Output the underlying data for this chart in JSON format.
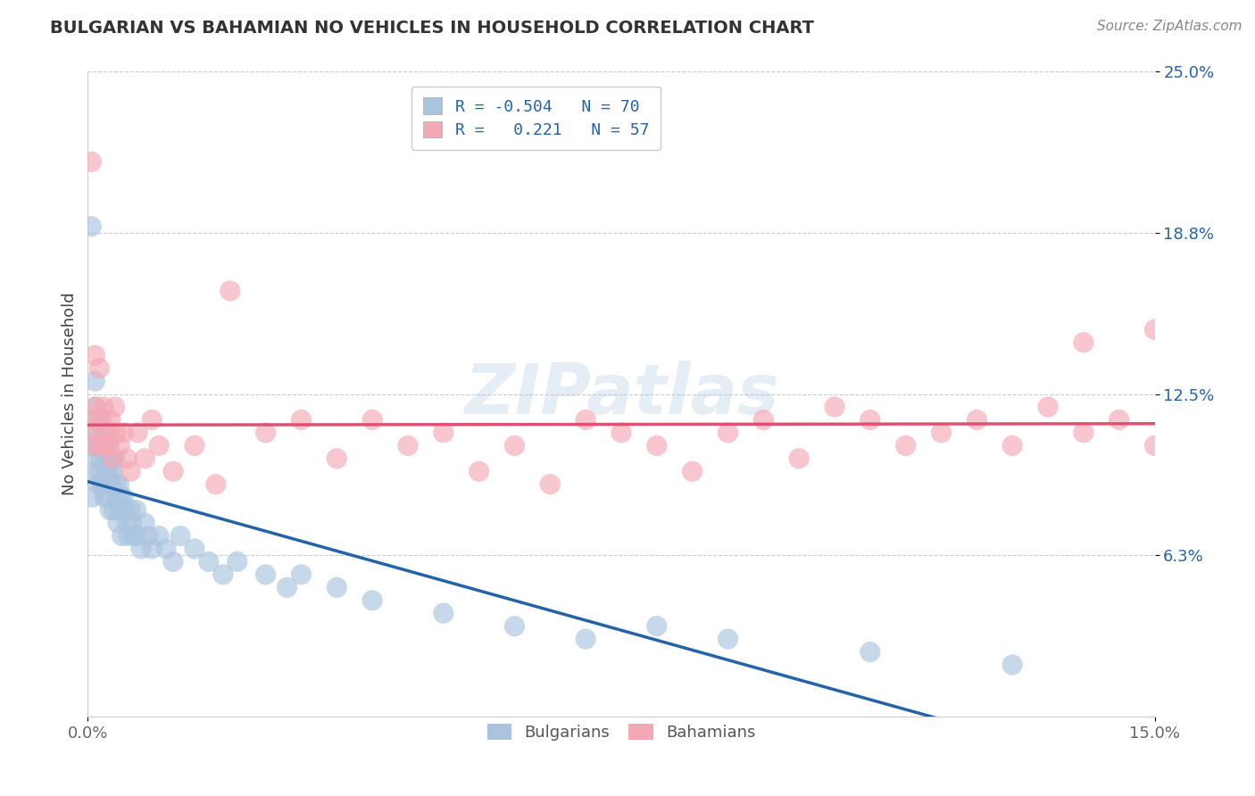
{
  "title": "BULGARIAN VS BAHAMIAN NO VEHICLES IN HOUSEHOLD CORRELATION CHART",
  "source_text": "Source: ZipAtlas.com",
  "ylabel": "No Vehicles in Household",
  "xlim": [
    0.0,
    15.0
  ],
  "ylim": [
    0.0,
    25.0
  ],
  "xtick_labels": [
    "0.0%",
    "15.0%"
  ],
  "ytick_labels": [
    "6.3%",
    "12.5%",
    "18.8%",
    "25.0%"
  ],
  "ytick_values": [
    6.25,
    12.5,
    18.75,
    25.0
  ],
  "grid_color": "#cccccc",
  "bg_color": "#ffffff",
  "watermark": "ZIPatlas",
  "watermark_color": "#aac4e0",
  "bulgarian_color": "#aac4df",
  "bahamian_color": "#f4a8b5",
  "bulgarian_line_color": "#2563a8",
  "bahamian_line_color": "#e05070",
  "legend_r_bulgarian": "-0.504",
  "legend_n_bulgarian": "70",
  "legend_r_bahamian": "0.221",
  "legend_n_bahamian": "57",
  "bulgarian_x": [
    0.05,
    0.06,
    0.07,
    0.08,
    0.09,
    0.1,
    0.1,
    0.12,
    0.13,
    0.14,
    0.15,
    0.16,
    0.17,
    0.18,
    0.19,
    0.2,
    0.21,
    0.22,
    0.23,
    0.25,
    0.26,
    0.27,
    0.28,
    0.3,
    0.31,
    0.32,
    0.33,
    0.35,
    0.36,
    0.38,
    0.4,
    0.41,
    0.42,
    0.44,
    0.45,
    0.47,
    0.48,
    0.5,
    0.52,
    0.55,
    0.57,
    0.6,
    0.62,
    0.65,
    0.68,
    0.7,
    0.75,
    0.8,
    0.85,
    0.9,
    1.0,
    1.1,
    1.2,
    1.3,
    1.5,
    1.7,
    1.9,
    2.1,
    2.5,
    2.8,
    3.0,
    3.5,
    4.0,
    5.0,
    6.0,
    7.0,
    8.0,
    9.0,
    11.0,
    13.0
  ],
  "bulgarian_y": [
    19.0,
    10.5,
    8.5,
    11.0,
    9.5,
    12.0,
    13.0,
    11.5,
    10.0,
    9.0,
    10.5,
    9.5,
    11.5,
    10.0,
    9.0,
    10.5,
    9.0,
    11.0,
    8.5,
    10.0,
    9.5,
    8.5,
    10.5,
    9.5,
    8.0,
    10.0,
    9.0,
    9.5,
    8.0,
    10.0,
    9.0,
    8.5,
    7.5,
    9.0,
    8.0,
    8.5,
    7.0,
    8.5,
    8.0,
    7.5,
    7.0,
    8.0,
    7.5,
    7.0,
    8.0,
    7.0,
    6.5,
    7.5,
    7.0,
    6.5,
    7.0,
    6.5,
    6.0,
    7.0,
    6.5,
    6.0,
    5.5,
    6.0,
    5.5,
    5.0,
    5.5,
    5.0,
    4.5,
    4.0,
    3.5,
    3.0,
    3.5,
    3.0,
    2.5,
    2.0
  ],
  "bahamian_x": [
    0.05,
    0.07,
    0.09,
    0.1,
    0.12,
    0.14,
    0.16,
    0.18,
    0.2,
    0.22,
    0.25,
    0.28,
    0.3,
    0.32,
    0.35,
    0.38,
    0.4,
    0.45,
    0.5,
    0.55,
    0.6,
    0.7,
    0.8,
    0.9,
    1.0,
    1.2,
    1.5,
    1.8,
    2.0,
    2.5,
    3.0,
    3.5,
    4.0,
    4.5,
    5.0,
    5.5,
    6.0,
    6.5,
    7.0,
    7.5,
    8.0,
    8.5,
    9.0,
    9.5,
    10.0,
    10.5,
    11.0,
    11.5,
    12.0,
    12.5,
    13.0,
    13.5,
    14.0,
    14.5,
    15.0,
    15.0,
    14.0
  ],
  "bahamian_y": [
    21.5,
    11.5,
    10.5,
    14.0,
    12.0,
    11.0,
    13.5,
    10.5,
    11.5,
    12.0,
    10.5,
    11.0,
    10.5,
    11.5,
    10.0,
    12.0,
    11.0,
    10.5,
    11.0,
    10.0,
    9.5,
    11.0,
    10.0,
    11.5,
    10.5,
    9.5,
    10.5,
    9.0,
    16.5,
    11.0,
    11.5,
    10.0,
    11.5,
    10.5,
    11.0,
    9.5,
    10.5,
    9.0,
    11.5,
    11.0,
    10.5,
    9.5,
    11.0,
    11.5,
    10.0,
    12.0,
    11.5,
    10.5,
    11.0,
    11.5,
    10.5,
    12.0,
    11.0,
    11.5,
    10.5,
    15.0,
    14.5
  ]
}
